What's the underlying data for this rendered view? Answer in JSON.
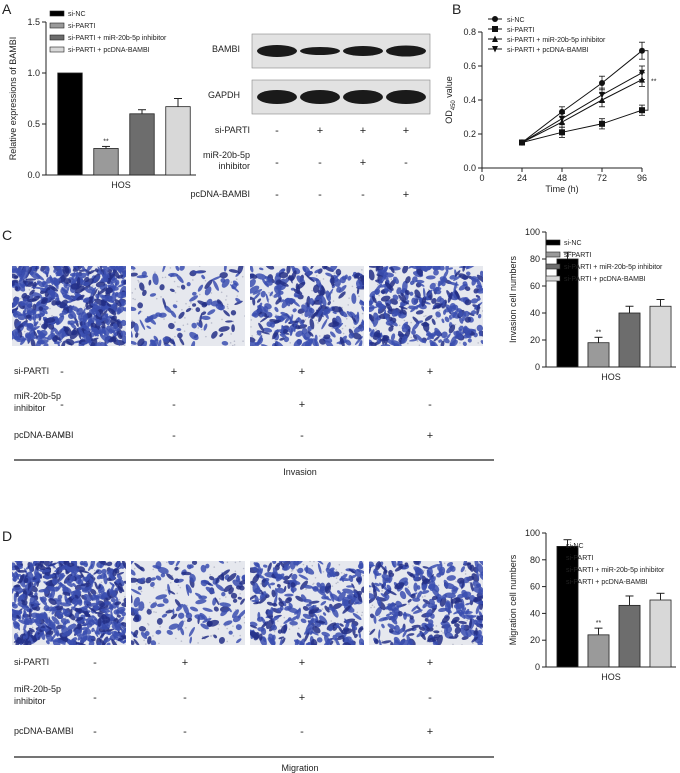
{
  "panels": {
    "A": {
      "letter": "A",
      "chart_data": {
        "type": "bar",
        "ylabel": "Relative expressions of BAMBI",
        "xlabel": "HOS",
        "ylim": [
          0,
          1.5
        ],
        "yticks": [
          "0.0",
          "0.5",
          "1.0",
          "1.5"
        ],
        "categories": [
          "si-NC",
          "si-PARTI",
          "si-PARTI + miR-20b-5p inhibitor",
          "si-PARTI + pcDNA-BAMBI"
        ],
        "values": [
          1.0,
          0.26,
          0.6,
          0.67
        ],
        "errors": [
          0,
          0.02,
          0.04,
          0.08
        ],
        "colors": [
          "#000000",
          "#9a9a9a",
          "#6d6d6d",
          "#d8d8d8"
        ],
        "annotations": [
          {
            "index": 1,
            "text": "**"
          }
        ],
        "legend": [
          "si-NC",
          "si-PARTI",
          "si-PARTI + miR-20b-5p inhibitor",
          "si-PARTI + pcDNA-BAMBI"
        ]
      },
      "blot": {
        "bands": [
          "BAMBI",
          "GAPDH"
        ],
        "rows": [
          {
            "label": "si-PARTI",
            "signs": [
              "-",
              "+",
              "+",
              "+"
            ]
          },
          {
            "label": "miR-20b-5p",
            "label2": "inhibitor",
            "signs": [
              "-",
              "-",
              "+",
              "-"
            ]
          },
          {
            "label": "pcDNA-BAMBI",
            "signs": [
              "-",
              "-",
              "-",
              "+"
            ]
          }
        ]
      }
    },
    "B": {
      "letter": "B",
      "chart_data": {
        "type": "line",
        "ylabel_main": "OD",
        "ylabel_sub": "450",
        "ylabel_tail": " value",
        "xlabel": "Time (h)",
        "x": [
          24,
          48,
          72,
          96
        ],
        "xlim": [
          0,
          96
        ],
        "xticks": [
          "0",
          "24",
          "48",
          "72",
          "96"
        ],
        "ylim": [
          0,
          0.8
        ],
        "yticks": [
          "0.0",
          "0.2",
          "0.4",
          "0.6",
          "0.8"
        ],
        "series": [
          {
            "name": "si-NC",
            "marker": "circle",
            "values": [
              0.15,
              0.33,
              0.5,
              0.69
            ],
            "errors": [
              0,
              0.03,
              0.04,
              0.05
            ]
          },
          {
            "name": "si-PARTI",
            "marker": "square",
            "values": [
              0.15,
              0.21,
              0.26,
              0.34
            ],
            "errors": [
              0,
              0.03,
              0.03,
              0.03
            ]
          },
          {
            "name": "si-PARTI + miR-20b-5p inhibitor",
            "marker": "triangle-up",
            "values": [
              0.15,
              0.27,
              0.4,
              0.52
            ],
            "errors": [
              0,
              0.03,
              0.04,
              0.04
            ]
          },
          {
            "name": "si-PARTI + pcDNA-BAMBI",
            "marker": "triangle-down",
            "values": [
              0.15,
              0.29,
              0.43,
              0.56
            ],
            "errors": [
              0,
              0.03,
              0.04,
              0.04
            ]
          }
        ],
        "annotation": "**"
      }
    },
    "C": {
      "letter": "C",
      "chart_data": {
        "type": "bar",
        "ylabel": "Invasion cell numbers",
        "xlabel": "HOS",
        "ylim": [
          0,
          100
        ],
        "yticks": [
          "0",
          "20",
          "40",
          "60",
          "80",
          "100"
        ],
        "categories": [
          "si-NC",
          "si-PARTI",
          "si-PARTI + miR-20b-5p inhibitor",
          "si-PARTI + pcDNA-BAMBI"
        ],
        "values": [
          80,
          18,
          40,
          45
        ],
        "errors": [
          5,
          4,
          5,
          5
        ],
        "colors": [
          "#000000",
          "#9a9a9a",
          "#6d6d6d",
          "#d8d8d8"
        ],
        "annotations": [
          {
            "index": 1,
            "text": "**"
          }
        ],
        "legend": [
          "si-NC",
          "si-PARTI",
          "si-PARTI + miR-20b-5p inhibitor",
          "si-PARTI + pcDNA-BAMBI"
        ]
      },
      "rows": [
        {
          "label": "si-PARTI",
          "signs": [
            "-",
            "+",
            "+",
            "+"
          ]
        },
        {
          "label": "miR-20b-5p",
          "label2": "inhibitor",
          "signs": [
            "-",
            "-",
            "+",
            "-"
          ]
        },
        {
          "label": "pcDNA-BAMBI",
          "signs": [
            "-",
            "-",
            "-",
            "+"
          ]
        }
      ],
      "footer": "Invasion"
    },
    "D": {
      "letter": "D",
      "chart_data": {
        "type": "bar",
        "ylabel": "Migration cell numbers",
        "xlabel": "HOS",
        "ylim": [
          0,
          100
        ],
        "yticks": [
          "0",
          "20",
          "40",
          "60",
          "80",
          "100"
        ],
        "categories": [
          "si-NC",
          "si-PARTI",
          "si-PARTI + miR-20b-5p inhibitor",
          "si-PARTI + pcDNA-BAMBI"
        ],
        "values": [
          90,
          24,
          46,
          50
        ],
        "errors": [
          5,
          5,
          7,
          5
        ],
        "colors": [
          "#000000",
          "#9a9a9a",
          "#6d6d6d",
          "#d8d8d8"
        ],
        "annotations": [
          {
            "index": 1,
            "text": "**"
          }
        ],
        "legend": [
          "si-NC",
          "si-PARTI",
          "si-PARTI + miR-20b-5p inhibitor",
          "si-PARTI + pcDNA-BAMBI"
        ]
      },
      "rows": [
        {
          "label": "si-PARTI",
          "signs": [
            "-",
            "+",
            "+",
            "+"
          ]
        },
        {
          "label": "miR-20b-5p",
          "label2": "inhibitor",
          "signs": [
            "-",
            "-",
            "+",
            "-"
          ]
        },
        {
          "label": "pcDNA-BAMBI",
          "signs": [
            "-",
            "-",
            "-",
            "+"
          ]
        }
      ],
      "footer": "Migration"
    }
  },
  "colors": {
    "stain": "#3b4fb0",
    "stain_dark": "#232f86",
    "background_cells": "#e6e8ee"
  }
}
